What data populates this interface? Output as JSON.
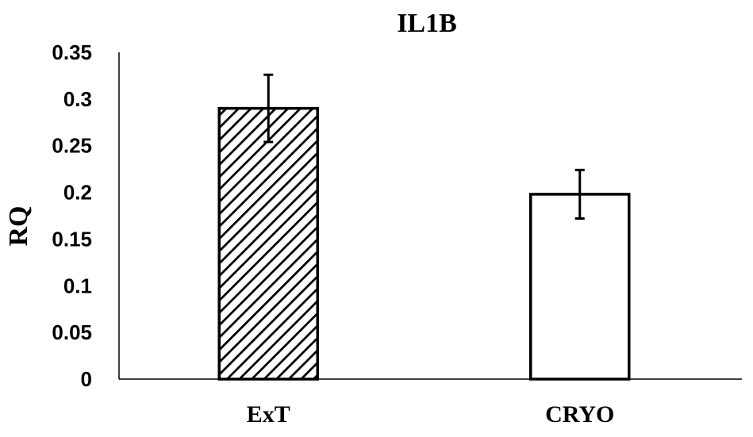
{
  "chart_data": {
    "type": "bar",
    "title": "IL1B",
    "xlabel": "",
    "ylabel": "RQ",
    "categories": [
      "ExT",
      "CRYO"
    ],
    "values": [
      0.29,
      0.198
    ],
    "error": [
      0.036,
      0.026
    ],
    "ylim": [
      0,
      0.35
    ],
    "yticks": [
      "0",
      "0.05",
      "0.1",
      "0.15",
      "0.2",
      "0.25",
      "0.3",
      "0.35"
    ],
    "bar_fill": [
      "hatched",
      "white"
    ],
    "grid": false,
    "legend": "none"
  },
  "colors": {
    "bar_stroke": "#000000",
    "hatch": "#000000",
    "bar_fill_plain": "#ffffff",
    "axis": "#000000"
  }
}
